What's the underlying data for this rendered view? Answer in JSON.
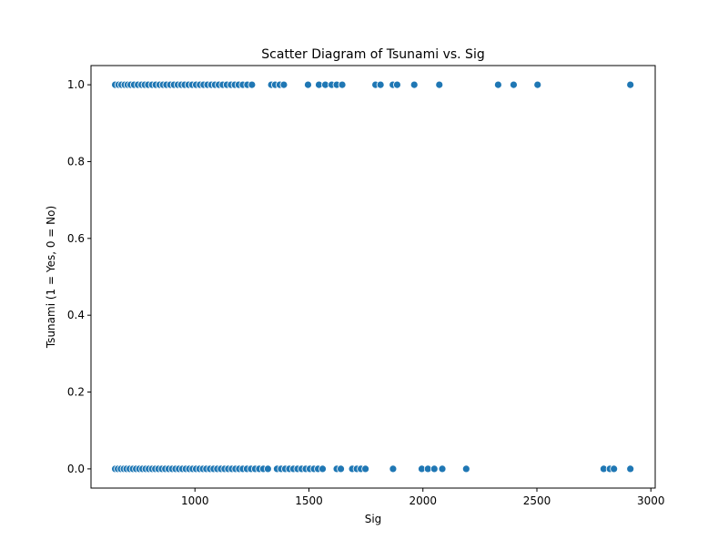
{
  "chart_data": {
    "type": "scatter",
    "title": "Scatter Diagram of Tsunami vs. Sig",
    "xlabel": "Sig",
    "ylabel": "Tsunami (1 = Yes, 0 = No)",
    "xlim": [
      544,
      3019
    ],
    "ylim": [
      -0.05,
      1.05
    ],
    "xticks": [
      1000,
      1500,
      2000,
      2500,
      3000
    ],
    "xtick_labels": [
      "1000",
      "1500",
      "2000",
      "2500",
      "3000"
    ],
    "yticks": [
      0.0,
      0.2,
      0.4,
      0.6,
      0.8,
      1.0
    ],
    "ytick_labels": [
      "0.0",
      "0.2",
      "0.4",
      "0.6",
      "0.8",
      "1.0"
    ],
    "grid": false,
    "marker_color": "#1f77b4",
    "series": [
      {
        "points": [
          [
            650,
            1
          ],
          [
            665,
            1
          ],
          [
            678,
            1
          ],
          [
            692,
            1
          ],
          [
            705,
            1
          ],
          [
            718,
            1
          ],
          [
            733,
            1
          ],
          [
            750,
            1
          ],
          [
            766,
            1
          ],
          [
            780,
            1
          ],
          [
            795,
            1
          ],
          [
            812,
            1
          ],
          [
            828,
            1
          ],
          [
            845,
            1
          ],
          [
            860,
            1
          ],
          [
            875,
            1
          ],
          [
            892,
            1
          ],
          [
            908,
            1
          ],
          [
            925,
            1
          ],
          [
            940,
            1
          ],
          [
            955,
            1
          ],
          [
            972,
            1
          ],
          [
            988,
            1
          ],
          [
            1005,
            1
          ],
          [
            1022,
            1
          ],
          [
            1038,
            1
          ],
          [
            1055,
            1
          ],
          [
            1072,
            1
          ],
          [
            1088,
            1
          ],
          [
            1105,
            1
          ],
          [
            1122,
            1
          ],
          [
            1140,
            1
          ],
          [
            1158,
            1
          ],
          [
            1175,
            1
          ],
          [
            1192,
            1
          ],
          [
            1210,
            1
          ],
          [
            1230,
            1
          ],
          [
            1250,
            1
          ],
          [
            1335,
            1
          ],
          [
            1352,
            1
          ],
          [
            1372,
            1
          ],
          [
            1390,
            1
          ],
          [
            1496,
            1
          ],
          [
            1544,
            1
          ],
          [
            1572,
            1
          ],
          [
            1600,
            1
          ],
          [
            1622,
            1
          ],
          [
            1646,
            1
          ],
          [
            1792,
            1
          ],
          [
            1814,
            1
          ],
          [
            1868,
            1
          ],
          [
            1887,
            1
          ],
          [
            1962,
            1
          ],
          [
            2072,
            1
          ],
          [
            2330,
            1
          ],
          [
            2398,
            1
          ],
          [
            2503,
            1
          ],
          [
            2910,
            1
          ],
          [
            650,
            0
          ],
          [
            662,
            0
          ],
          [
            675,
            0
          ],
          [
            688,
            0
          ],
          [
            700,
            0
          ],
          [
            714,
            0
          ],
          [
            728,
            0
          ],
          [
            742,
            0
          ],
          [
            756,
            0
          ],
          [
            770,
            0
          ],
          [
            784,
            0
          ],
          [
            798,
            0
          ],
          [
            812,
            0
          ],
          [
            826,
            0
          ],
          [
            840,
            0
          ],
          [
            855,
            0
          ],
          [
            870,
            0
          ],
          [
            885,
            0
          ],
          [
            900,
            0
          ],
          [
            915,
            0
          ],
          [
            930,
            0
          ],
          [
            945,
            0
          ],
          [
            960,
            0
          ],
          [
            975,
            0
          ],
          [
            990,
            0
          ],
          [
            1005,
            0
          ],
          [
            1020,
            0
          ],
          [
            1035,
            0
          ],
          [
            1050,
            0
          ],
          [
            1066,
            0
          ],
          [
            1082,
            0
          ],
          [
            1098,
            0
          ],
          [
            1114,
            0
          ],
          [
            1130,
            0
          ],
          [
            1146,
            0
          ],
          [
            1162,
            0
          ],
          [
            1178,
            0
          ],
          [
            1194,
            0
          ],
          [
            1210,
            0
          ],
          [
            1228,
            0
          ],
          [
            1246,
            0
          ],
          [
            1264,
            0
          ],
          [
            1282,
            0
          ],
          [
            1300,
            0
          ],
          [
            1320,
            0
          ],
          [
            1360,
            0
          ],
          [
            1378,
            0
          ],
          [
            1396,
            0
          ],
          [
            1414,
            0
          ],
          [
            1432,
            0
          ],
          [
            1450,
            0
          ],
          [
            1468,
            0
          ],
          [
            1486,
            0
          ],
          [
            1504,
            0
          ],
          [
            1522,
            0
          ],
          [
            1540,
            0
          ],
          [
            1560,
            0
          ],
          [
            1622,
            0
          ],
          [
            1640,
            0
          ],
          [
            1690,
            0
          ],
          [
            1710,
            0
          ],
          [
            1728,
            0
          ],
          [
            1748,
            0
          ],
          [
            1869,
            0
          ],
          [
            1995,
            0
          ],
          [
            2022,
            0
          ],
          [
            2050,
            0
          ],
          [
            2085,
            0
          ],
          [
            2190,
            0
          ],
          [
            2793,
            0
          ],
          [
            2820,
            0
          ],
          [
            2838,
            0
          ],
          [
            2910,
            0
          ]
        ]
      }
    ]
  }
}
